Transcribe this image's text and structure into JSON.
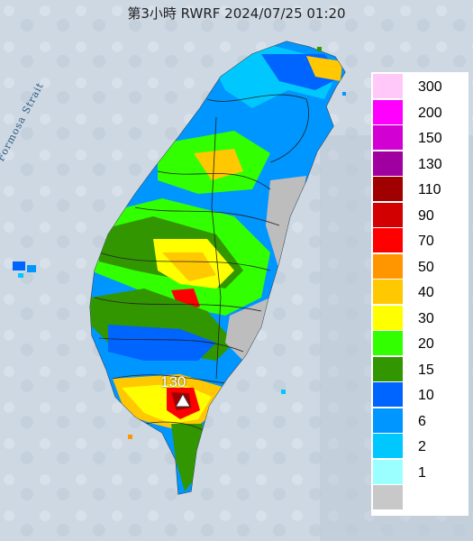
{
  "title": "第3小時  RWRF 2024/07/25 01:20",
  "strait_label": "Formosa Strait",
  "peak": {
    "label": "130",
    "marker": "triangle-icon"
  },
  "legend": [
    {
      "label": "300",
      "color": "#ffc8f8"
    },
    {
      "label": "200",
      "color": "#ff00ff"
    },
    {
      "label": "150",
      "color": "#d200d2"
    },
    {
      "label": "130",
      "color": "#a000a0"
    },
    {
      "label": "110",
      "color": "#a00000"
    },
    {
      "label": "90",
      "color": "#d20000"
    },
    {
      "label": "70",
      "color": "#ff0000"
    },
    {
      "label": "50",
      "color": "#ff9600"
    },
    {
      "label": "40",
      "color": "#ffc800"
    },
    {
      "label": "30",
      "color": "#ffff00"
    },
    {
      "label": "20",
      "color": "#32ff00"
    },
    {
      "label": "15",
      "color": "#329600"
    },
    {
      "label": "10",
      "color": "#0064ff"
    },
    {
      "label": "6",
      "color": "#0096ff"
    },
    {
      "label": "2",
      "color": "#00c8ff"
    },
    {
      "label": "1",
      "color": "#9bffff"
    },
    {
      "label": "",
      "color": "#c8c8c8"
    }
  ]
}
